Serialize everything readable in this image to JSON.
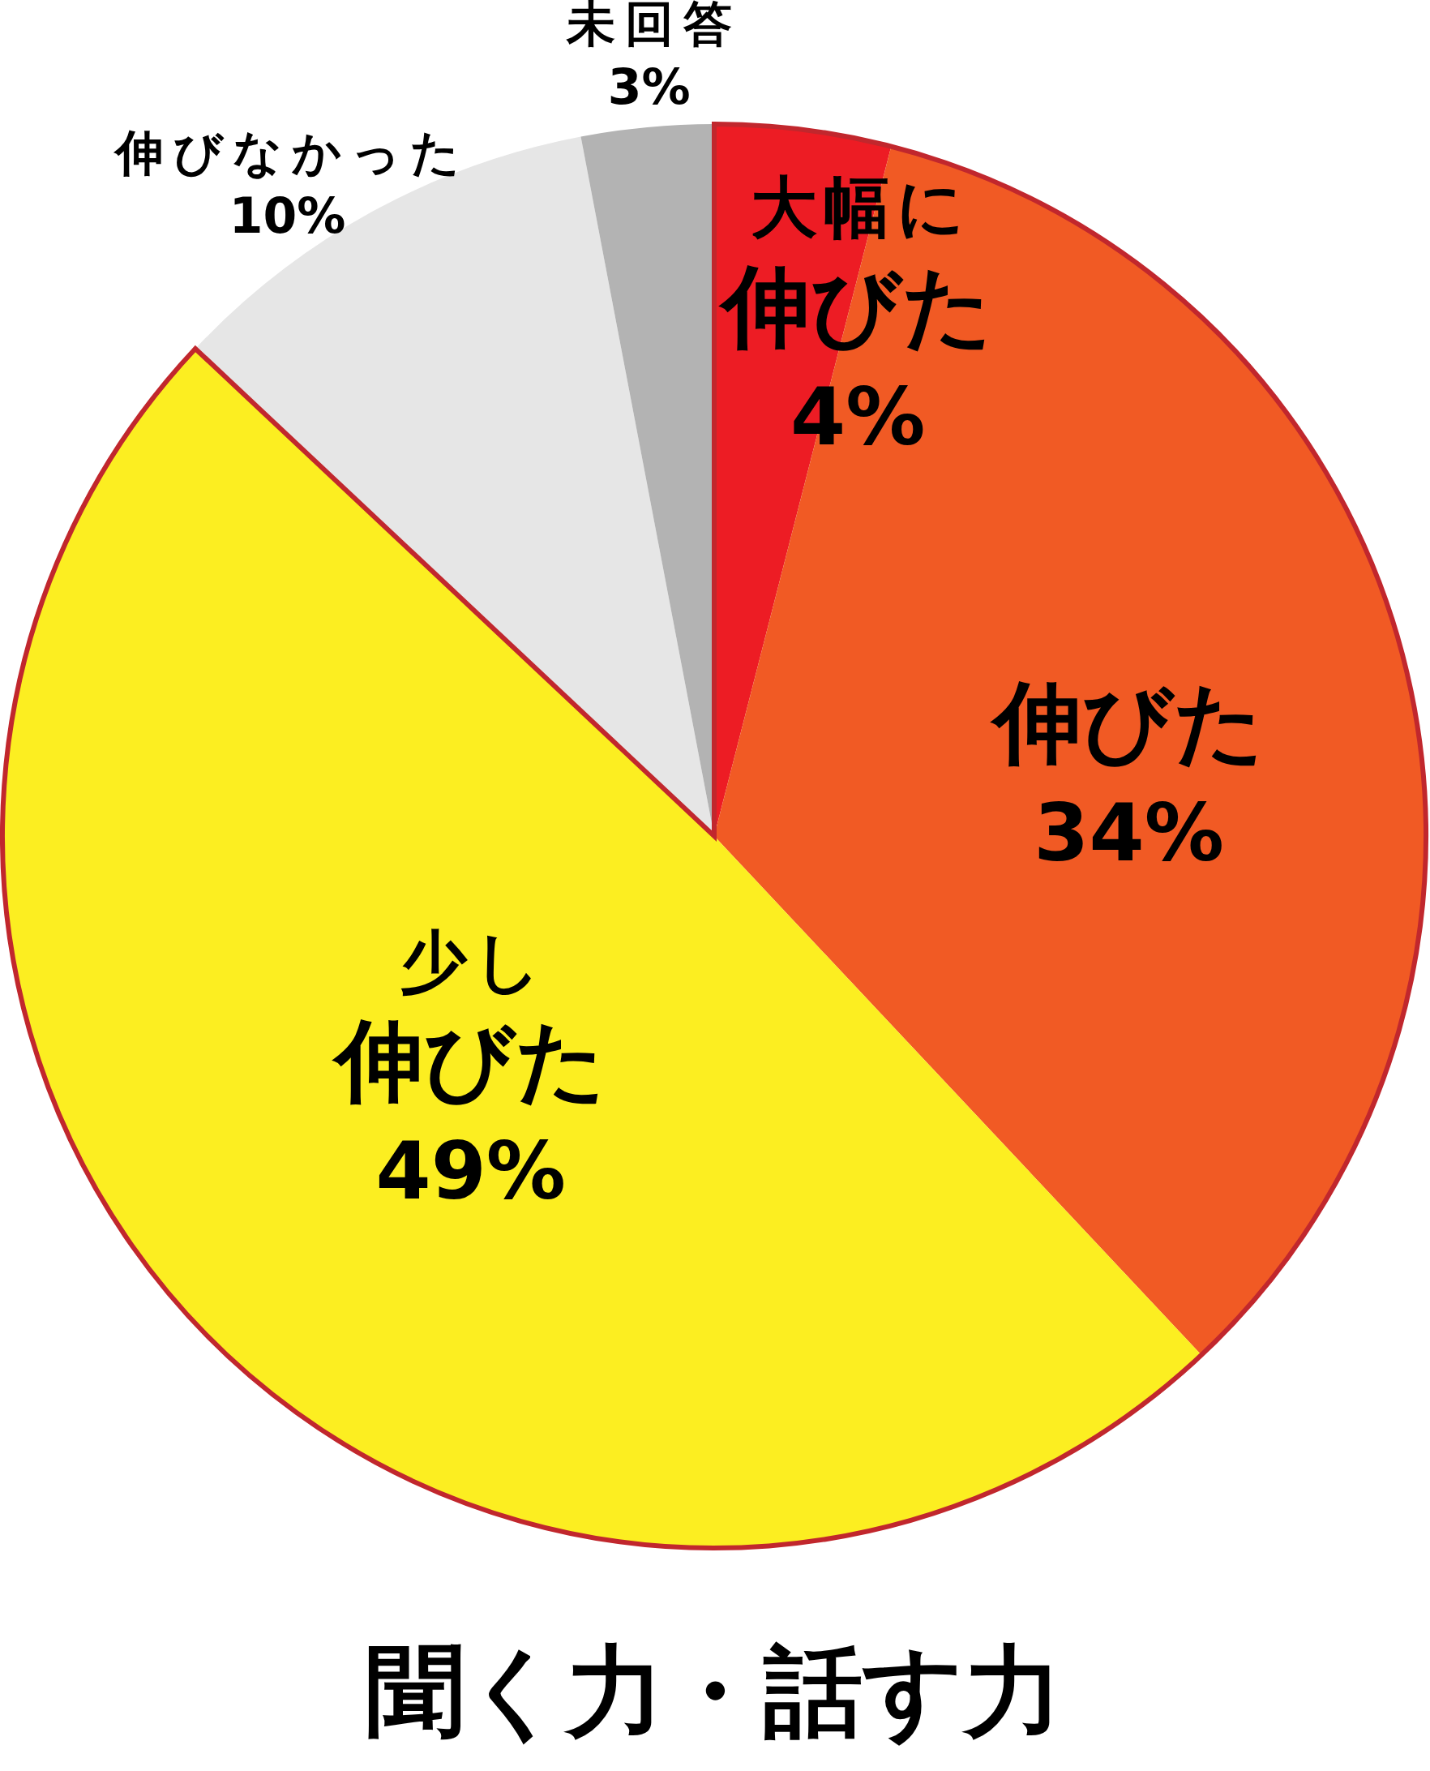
{
  "chart_data": {
    "type": "pie",
    "title": "聞く力・話す力",
    "categories": [
      "大幅に伸びた",
      "伸びた",
      "少し伸びた",
      "伸びなかった",
      "未回答"
    ],
    "values": [
      4,
      34,
      49,
      10,
      3
    ],
    "value_labels": [
      "4%",
      "34%",
      "49%",
      "10%",
      "3%"
    ],
    "colors": [
      "#ed1c24",
      "#f15a24",
      "#fcee21",
      "#e6e6e6",
      "#b3b3b3"
    ]
  }
}
